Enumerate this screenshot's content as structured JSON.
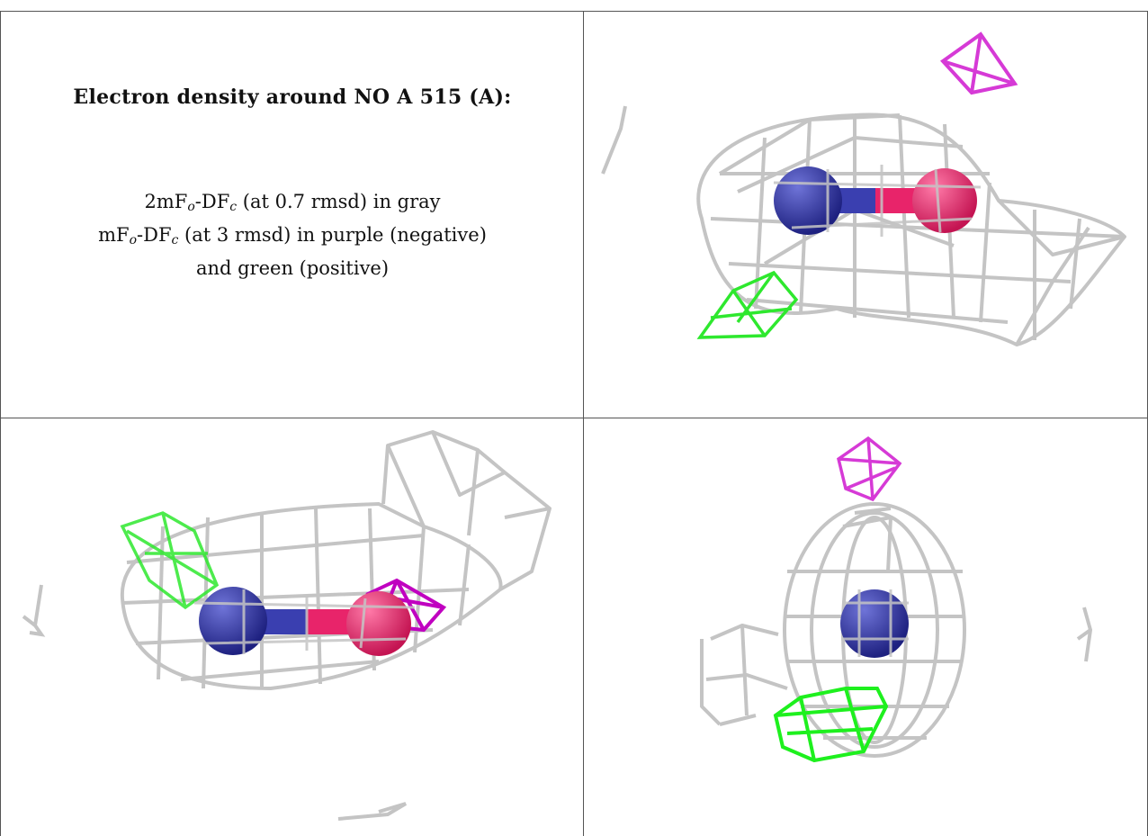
{
  "caption": {
    "title": "Electron density around NO A 515 (A):",
    "line1": {
      "prefix": "2mF",
      "sub1": "o",
      "mid": "-DF",
      "sub2": "c",
      "suffix": " (at 0.7 rmsd) in gray"
    },
    "line2": {
      "prefix": "mF",
      "sub1": "o",
      "mid": "-DF",
      "sub2": "c",
      "suffix": " (at 3 rmsd) in purple (negative)"
    },
    "line3": "and green (positive)"
  },
  "colors": {
    "map_2fofc": "#c4c4c4",
    "map_negative": "#d63ad6",
    "map_positive": "#2ee82e",
    "nitrogen": "#2b2f9c",
    "oxygen": "#e8246a",
    "grid_line": "#555555"
  },
  "panels": [
    {
      "id": "caption"
    },
    {
      "id": "view-1",
      "content": "density-render"
    },
    {
      "id": "view-2",
      "content": "density-render"
    },
    {
      "id": "view-3",
      "content": "density-render"
    }
  ]
}
